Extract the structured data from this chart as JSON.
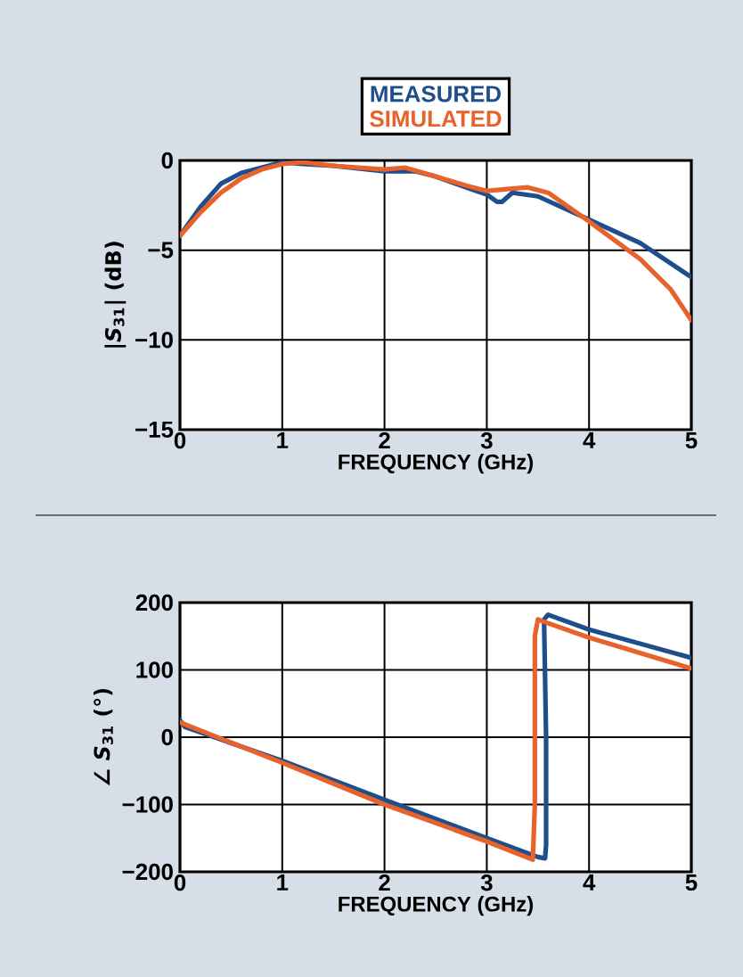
{
  "chart_data": [
    {
      "type": "line",
      "xlabel": "FREQUENCY (GHz)",
      "ylabel": "|*S*$_{31}$| (dB)",
      "xlim": [
        0,
        5
      ],
      "ylim": [
        -15,
        0
      ],
      "xticks": [
        0,
        1,
        2,
        3,
        4,
        5
      ],
      "yticks": [
        {
          "value": -15,
          "label": "−15"
        },
        {
          "value": -10,
          "label": "−10"
        },
        {
          "value": -5,
          "label": "−5"
        },
        0
      ],
      "grid": true,
      "legend": "top",
      "marker": "none",
      "line_style": "solid",
      "series": [
        {
          "name": "MEASURED",
          "color": "#1f4e8c",
          "x": [
            0,
            0.2,
            0.4,
            0.6,
            0.8,
            1.0,
            1.2,
            1.5,
            2.0,
            2.3,
            2.5,
            2.8,
            3.0,
            3.1,
            3.15,
            3.25,
            3.5,
            4.0,
            4.5,
            5.0
          ],
          "values": [
            -4.2,
            -2.6,
            -1.3,
            -0.7,
            -0.4,
            -0.1,
            -0.2,
            -0.3,
            -0.6,
            -0.6,
            -0.9,
            -1.5,
            -1.9,
            -2.3,
            -2.3,
            -1.8,
            -2.0,
            -3.3,
            -4.6,
            -6.5
          ]
        },
        {
          "name": "SIMULATED",
          "color": "#e8622c",
          "x": [
            0,
            0.2,
            0.4,
            0.6,
            0.8,
            1.0,
            1.2,
            1.5,
            2.0,
            2.2,
            2.5,
            2.8,
            3.0,
            3.2,
            3.4,
            3.6,
            4.0,
            4.5,
            4.8,
            5.0
          ],
          "values": [
            -4.2,
            -2.9,
            -1.8,
            -1.0,
            -0.5,
            -0.2,
            -0.1,
            -0.3,
            -0.5,
            -0.4,
            -0.9,
            -1.4,
            -1.7,
            -1.6,
            -1.5,
            -1.8,
            -3.4,
            -5.5,
            -7.2,
            -8.9
          ]
        }
      ]
    },
    {
      "type": "line",
      "xlabel": "FREQUENCY (GHz)",
      "ylabel": "∠ *S*$_{31}$ (°)",
      "xlim": [
        0,
        5
      ],
      "ylim": [
        -200,
        200
      ],
      "xticks": [
        0,
        1,
        2,
        3,
        4,
        5
      ],
      "yticks": [
        {
          "value": -200,
          "label": "−200"
        },
        {
          "value": -100,
          "label": "−100"
        },
        0,
        100,
        200
      ],
      "grid": true,
      "marker": "none",
      "line_style": "solid",
      "series": [
        {
          "color": "#1f4e8c",
          "x": [
            0,
            0.05,
            1,
            2,
            3,
            3.5,
            3.57,
            3.58,
            3.58,
            3.56,
            3.6,
            4,
            5
          ],
          "values": [
            25,
            15,
            -35,
            -93,
            -150,
            -178,
            -180,
            -160,
            0,
            175,
            182,
            160,
            118
          ]
        },
        {
          "color": "#e8622c",
          "x": [
            0,
            1,
            2,
            3,
            3.45,
            3.47,
            3.47,
            3.5,
            3.55,
            4,
            5
          ],
          "values": [
            22,
            -38,
            -100,
            -155,
            -182,
            -100,
            150,
            175,
            172,
            148,
            102
          ]
        }
      ]
    }
  ]
}
